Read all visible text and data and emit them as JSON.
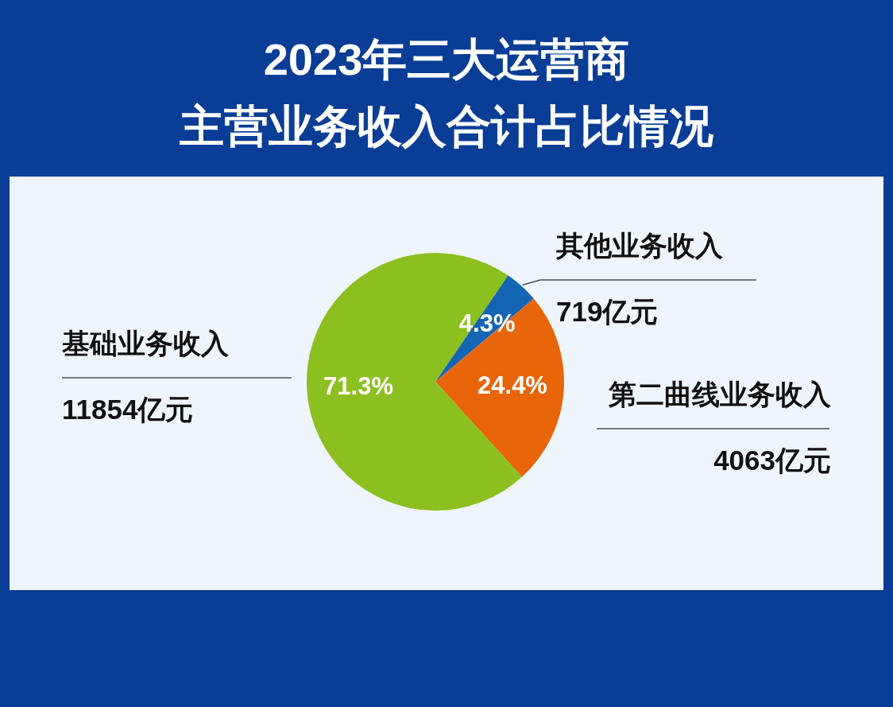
{
  "chart_data": {
    "type": "pie",
    "title": [
      "2023年三大运营商",
      "主营业务收入合计占比情况"
    ],
    "categories": [
      "其他业务收入",
      "第二曲线业务收入",
      "基础业务收入"
    ],
    "values": [
      4.3,
      24.4,
      71.3
    ],
    "colors": [
      "#1565b5",
      "#e8650a",
      "#8cc020"
    ],
    "value_labels": [
      "4.3%",
      "24.4%",
      "71.3%"
    ],
    "annotations": [
      "719亿元",
      "4063亿元",
      "11854亿元"
    ]
  }
}
